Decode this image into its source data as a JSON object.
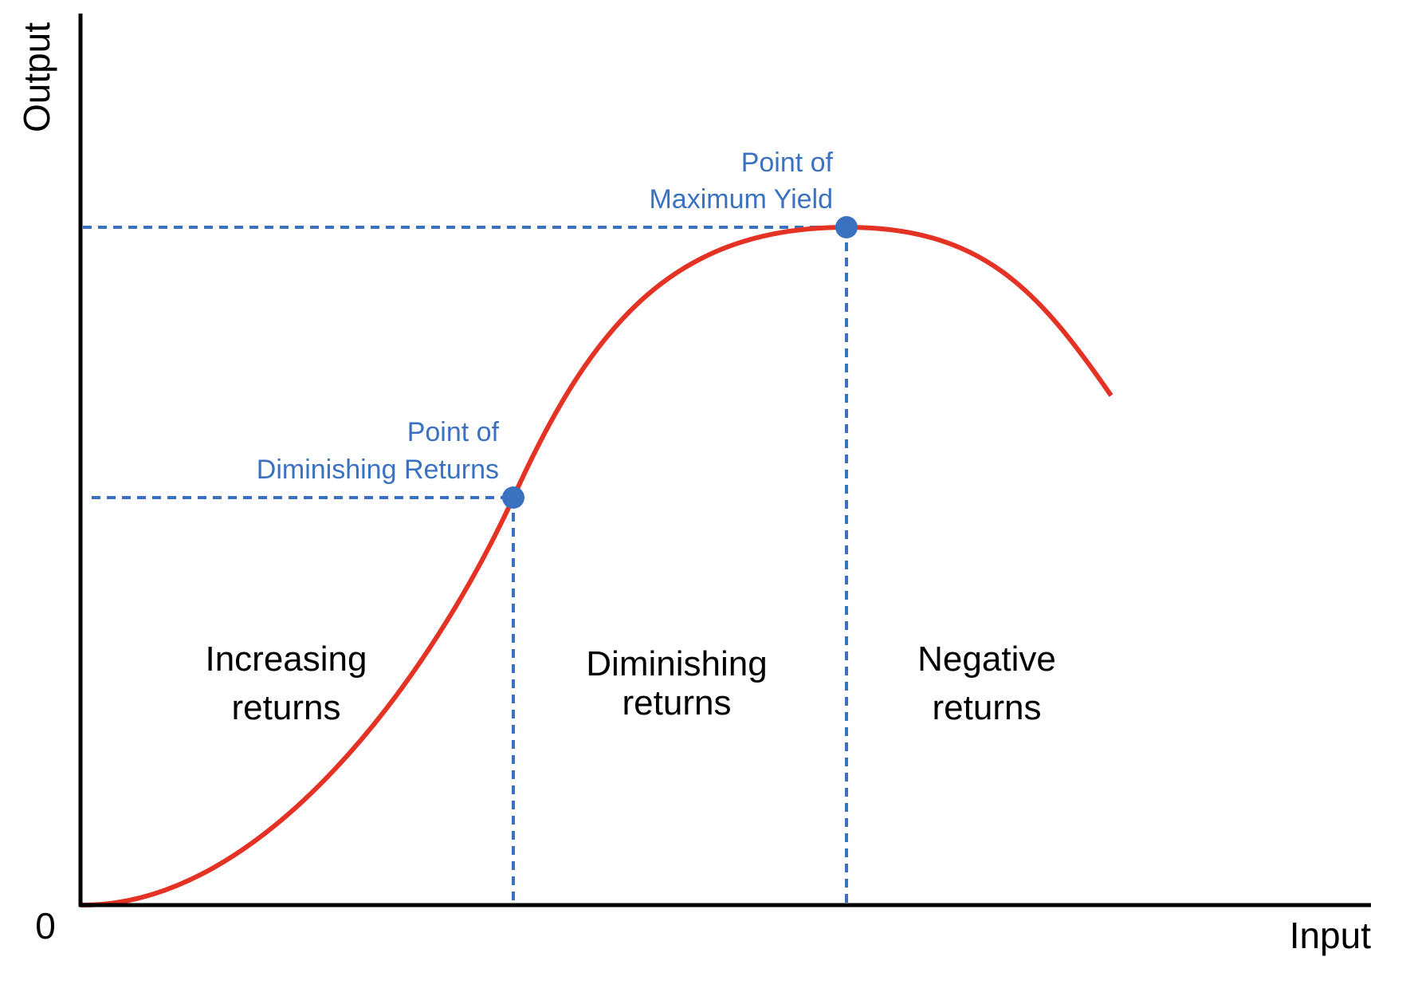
{
  "axes": {
    "y_label": "Output",
    "x_label": "Input",
    "origin": "0"
  },
  "annotations": [
    {
      "lines": [
        "Point of",
        "Maximum Yield"
      ]
    },
    {
      "lines": [
        "Point of",
        "Diminishing Returns"
      ]
    }
  ],
  "regions": [
    {
      "lines": [
        "Increasing",
        "returns"
      ]
    },
    {
      "lines": [
        "Diminishing",
        "returns"
      ]
    },
    {
      "lines": [
        "Negative",
        "returns"
      ]
    }
  ]
}
